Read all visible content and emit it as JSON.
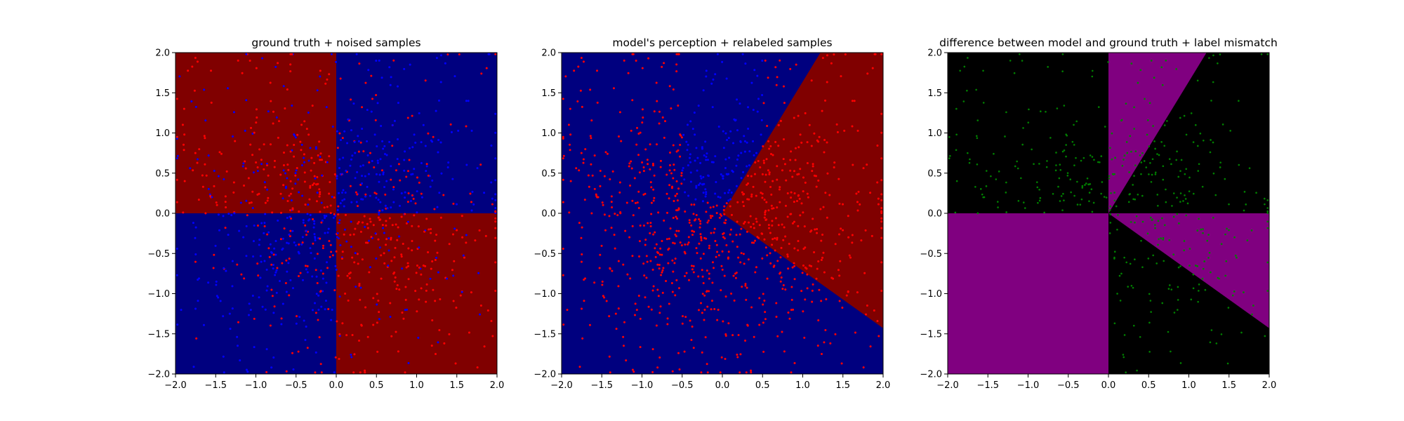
{
  "figure": {
    "background": "#ffffff",
    "axis_color": "#000000",
    "tick_labels": [
      "−2.0",
      "−1.5",
      "−1.0",
      "−0.5",
      "0.0",
      "0.5",
      "1.0",
      "1.5",
      "2.0"
    ]
  },
  "chart_data": [
    {
      "type": "scatter",
      "title": "ground truth + noised samples",
      "xlabel": "",
      "ylabel": "",
      "xlim": [
        -2.0,
        2.0
      ],
      "ylim": [
        -2.0,
        2.0
      ],
      "xticks": [
        -2.0,
        -1.5,
        -1.0,
        -0.5,
        0.0,
        0.5,
        1.0,
        1.5,
        2.0
      ],
      "yticks": [
        -2.0,
        -1.5,
        -1.0,
        -0.5,
        0.0,
        0.5,
        1.0,
        1.5,
        2.0
      ],
      "grid": false,
      "background_regions": [
        {
          "description": "quadrant x<0, y>0",
          "polygon": [
            [
              -2,
              0
            ],
            [
              0,
              0
            ],
            [
              0,
              2
            ],
            [
              -2,
              2
            ]
          ],
          "color": "#800000"
        },
        {
          "description": "quadrant x>0, y>0",
          "polygon": [
            [
              0,
              0
            ],
            [
              2,
              0
            ],
            [
              2,
              2
            ],
            [
              0,
              2
            ]
          ],
          "color": "#00007f"
        },
        {
          "description": "quadrant x<0, y<0",
          "polygon": [
            [
              -2,
              -2
            ],
            [
              0,
              -2
            ],
            [
              0,
              0
            ],
            [
              -2,
              0
            ]
          ],
          "color": "#00007f"
        },
        {
          "description": "quadrant x>0, y<0",
          "polygon": [
            [
              0,
              -2
            ],
            [
              2,
              -2
            ],
            [
              2,
              0
            ],
            [
              0,
              0
            ]
          ],
          "color": "#800000"
        }
      ],
      "samples": {
        "description": "~1000 noised samples, dense near origin, red and blue points scattered over all quadrants",
        "count": 1000,
        "colors": {
          "red": "#ff0000",
          "blue": "#0000ff"
        }
      }
    },
    {
      "type": "scatter",
      "title": "model's perception + relabeled samples",
      "xlabel": "",
      "ylabel": "",
      "xlim": [
        -2.0,
        2.0
      ],
      "ylim": [
        -2.0,
        2.0
      ],
      "xticks": [
        -2.0,
        -1.5,
        -1.0,
        -0.5,
        0.0,
        0.5,
        1.0,
        1.5,
        2.0
      ],
      "yticks": [
        -2.0,
        -1.5,
        -1.0,
        -0.5,
        0.0,
        0.5,
        1.0,
        1.5,
        2.0
      ],
      "grid": false,
      "background_regions": [
        {
          "description": "full area",
          "polygon": [
            [
              -2,
              -2
            ],
            [
              2,
              -2
            ],
            [
              2,
              2
            ],
            [
              -2,
              2
            ]
          ],
          "color": "#00007f"
        },
        {
          "description": "wedge between rays to (1.22,2) and (2,-1.43)",
          "polygon": [
            [
              0,
              0
            ],
            [
              1.22,
              2
            ],
            [
              2,
              2
            ],
            [
              2,
              -1.43
            ]
          ],
          "color": "#800000"
        }
      ],
      "samples": {
        "description": "blue points in upper wedge, red points elsewhere (relabeled by model)",
        "count": 1000,
        "colors": {
          "red": "#ff0000",
          "blue": "#0000ff"
        }
      }
    },
    {
      "type": "scatter",
      "title": "difference between model and ground truth + label mismatch",
      "xlabel": "",
      "ylabel": "",
      "xlim": [
        -2.0,
        2.0
      ],
      "ylim": [
        -2.0,
        2.0
      ],
      "xticks": [
        -2.0,
        -1.5,
        -1.0,
        -0.5,
        0.0,
        0.5,
        1.0,
        1.5,
        2.0
      ],
      "yticks": [
        -2.0,
        -1.5,
        -1.0,
        -0.5,
        0.0,
        0.5,
        1.0,
        1.5,
        2.0
      ],
      "grid": false,
      "background_regions": [
        {
          "description": "full area",
          "polygon": [
            [
              -2,
              -2
            ],
            [
              2,
              -2
            ],
            [
              2,
              2
            ],
            [
              -2,
              2
            ]
          ],
          "color": "#000000"
        },
        {
          "description": "upper-right wedge x>0 left of ray to (1.22,2)",
          "polygon": [
            [
              0,
              0
            ],
            [
              0,
              2
            ],
            [
              1.22,
              2
            ]
          ],
          "color": "#800080"
        },
        {
          "description": "lower-right wedge above ray to (2,-1.43)",
          "polygon": [
            [
              0,
              0
            ],
            [
              2,
              0
            ],
            [
              2,
              -1.43
            ]
          ],
          "color": "#800080"
        },
        {
          "description": "lower-left quadrant",
          "polygon": [
            [
              -2,
              -2
            ],
            [
              0,
              -2
            ],
            [
              0,
              0
            ],
            [
              -2,
              0
            ]
          ],
          "color": "#800080"
        }
      ],
      "samples": {
        "description": "green points marking label mismatches",
        "count": 420,
        "colors": {
          "mismatch": "#008000"
        }
      }
    }
  ]
}
